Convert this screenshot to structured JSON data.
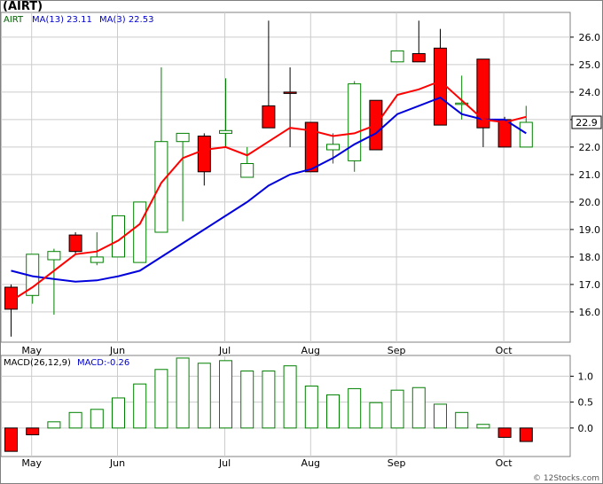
{
  "header": {
    "title": "(AIRT)"
  },
  "credit": "© 12Stocks.com",
  "price_legend": {
    "ticker": "AIRT",
    "ma13_label": "MA(13)",
    "ma13_value": "23.11",
    "ma3_label": "MA(3)",
    "ma3_value": "22.53"
  },
  "macd_legend": {
    "label": "MACD(26,12,9)",
    "value_label": "MACD:-0.26"
  },
  "last_price": "22.9",
  "colors": {
    "up_candle": "#008000",
    "down_candle": "#ff0000",
    "ma13": "#0000dd",
    "ma3": "#ff0000",
    "label_blue": "#0000cc",
    "grid": "#cccccc",
    "frame": "#808080"
  },
  "chart_data": [
    {
      "type": "candlestick",
      "name": "price",
      "y_ticks": [
        16.0,
        17.0,
        18.0,
        19.0,
        20.0,
        21.0,
        22.0,
        23.0,
        24.0,
        25.0,
        26.0
      ],
      "ylim": [
        14.9,
        26.9
      ],
      "x_tick_labels": [
        "May",
        "Jun",
        "Jul",
        "Aug",
        "Sep",
        "Oct"
      ],
      "x_tick_index": [
        1,
        5,
        10,
        14,
        18,
        23
      ],
      "grid": true,
      "candles": [
        {
          "o": 16.9,
          "h": 17.0,
          "l": 15.1,
          "c": 16.1,
          "dir": "down"
        },
        {
          "o": 16.6,
          "h": 18.1,
          "l": 16.3,
          "c": 18.1,
          "dir": "up"
        },
        {
          "o": 17.9,
          "h": 18.3,
          "l": 15.9,
          "c": 18.2,
          "dir": "up"
        },
        {
          "o": 18.8,
          "h": 18.9,
          "l": 18.1,
          "c": 18.2,
          "dir": "down"
        },
        {
          "o": 17.8,
          "h": 18.9,
          "l": 17.7,
          "c": 18.0,
          "dir": "up"
        },
        {
          "o": 18.0,
          "h": 19.5,
          "l": 18.0,
          "c": 19.5,
          "dir": "up"
        },
        {
          "o": 17.8,
          "h": 20.0,
          "l": 17.8,
          "c": 20.0,
          "dir": "up"
        },
        {
          "o": 18.9,
          "h": 24.9,
          "l": 18.9,
          "c": 22.2,
          "dir": "up"
        },
        {
          "o": 22.2,
          "h": 22.5,
          "l": 19.3,
          "c": 22.5,
          "dir": "up"
        },
        {
          "o": 22.4,
          "h": 22.5,
          "l": 20.6,
          "c": 21.1,
          "dir": "down"
        },
        {
          "o": 22.5,
          "h": 24.5,
          "l": 22.0,
          "c": 22.6,
          "dir": "up"
        },
        {
          "o": 20.9,
          "h": 22.0,
          "l": 20.9,
          "c": 21.4,
          "dir": "up"
        },
        {
          "o": 23.5,
          "h": 26.6,
          "l": 22.7,
          "c": 22.7,
          "dir": "down"
        },
        {
          "o": 24.0,
          "h": 24.9,
          "l": 22.0,
          "c": 24.0,
          "dir": "down"
        },
        {
          "o": 22.9,
          "h": 22.9,
          "l": 21.1,
          "c": 21.1,
          "dir": "down"
        },
        {
          "o": 21.9,
          "h": 22.5,
          "l": 21.4,
          "c": 22.1,
          "dir": "up"
        },
        {
          "o": 21.5,
          "h": 24.4,
          "l": 21.1,
          "c": 24.3,
          "dir": "up"
        },
        {
          "o": 23.7,
          "h": 23.7,
          "l": 21.9,
          "c": 21.9,
          "dir": "down"
        },
        {
          "o": 25.1,
          "h": 25.5,
          "l": 25.1,
          "c": 25.5,
          "dir": "up"
        },
        {
          "o": 25.4,
          "h": 26.6,
          "l": 25.1,
          "c": 25.1,
          "dir": "down"
        },
        {
          "o": 25.6,
          "h": 26.3,
          "l": 22.8,
          "c": 22.8,
          "dir": "down"
        },
        {
          "o": 23.6,
          "h": 24.6,
          "l": 23.0,
          "c": 23.6,
          "dir": "up"
        },
        {
          "o": 25.2,
          "h": 25.2,
          "l": 22.0,
          "c": 22.7,
          "dir": "down"
        },
        {
          "o": 23.0,
          "h": 23.1,
          "l": 22.0,
          "c": 22.0,
          "dir": "down"
        },
        {
          "o": 22.0,
          "h": 23.5,
          "l": 22.0,
          "c": 22.9,
          "dir": "up"
        }
      ],
      "series": [
        {
          "name": "MA(13)",
          "x_start": 0,
          "values": [
            16.4,
            16.9,
            17.5,
            18.1,
            18.2,
            18.6,
            19.2,
            20.7,
            21.6,
            21.9,
            22.0,
            21.7,
            22.2,
            22.7,
            22.6,
            22.4,
            22.5,
            22.8,
            23.9,
            24.1,
            24.4,
            null,
            23.0,
            22.9,
            23.1
          ]
        },
        {
          "name": "MA(3)",
          "x_start": 0,
          "values": [
            17.5,
            17.3,
            17.2,
            17.1,
            17.15,
            17.3,
            17.5,
            18.0,
            18.5,
            19.0,
            19.5,
            20.0,
            20.6,
            21.0,
            21.2,
            21.6,
            22.1,
            22.5,
            23.2,
            23.5,
            23.8,
            23.2,
            23.0,
            23.0,
            22.5
          ]
        }
      ]
    },
    {
      "type": "bar",
      "name": "MACD",
      "y_ticks": [
        0.0,
        0.5,
        1.0
      ],
      "ylim": [
        -0.55,
        1.4
      ],
      "x_tick_labels": [
        "May",
        "Jun",
        "Jul",
        "Aug",
        "Sep",
        "Oct"
      ],
      "x_tick_index": [
        1,
        5,
        10,
        14,
        18,
        23
      ],
      "values": [
        -0.45,
        -0.13,
        0.12,
        0.3,
        0.36,
        0.58,
        0.85,
        1.13,
        1.35,
        1.25,
        1.3,
        1.1,
        1.1,
        1.2,
        0.81,
        0.64,
        0.76,
        0.49,
        0.73,
        0.78,
        0.46,
        0.3,
        0.07,
        -0.18,
        -0.26
      ],
      "negative_colored": true
    }
  ]
}
